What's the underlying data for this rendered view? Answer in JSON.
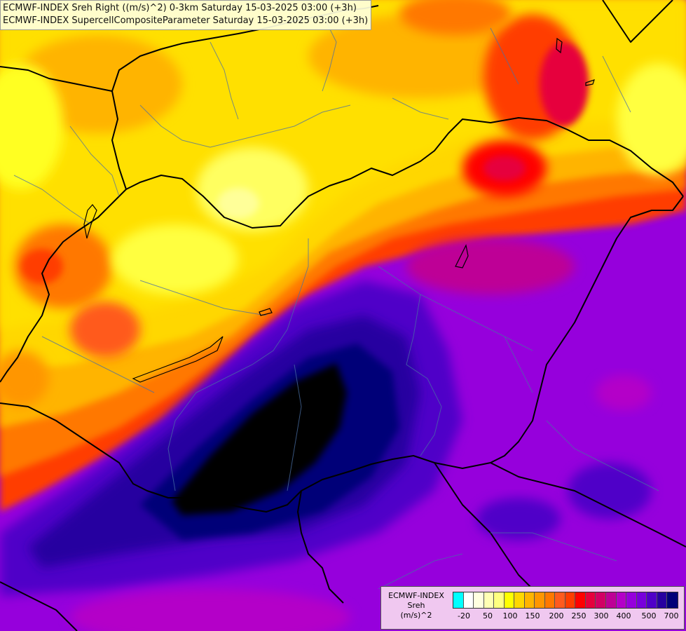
{
  "header": {
    "line1": "ECMWF-INDEX Sreh Right ((m/s)^2) 0-3km Saturday 15-03-2025 03:00 (+3h)",
    "line2": "ECMWF-INDEX SupercellCompositeParameter Saturday 15-03-2025 03:00 (+3h)"
  },
  "legend": {
    "line1": "ECMWF-INDEX",
    "line2": "Sreh",
    "line3": "(m/s)^2",
    "colors": [
      "#00ffff",
      "#ffffff",
      "#ffffe0",
      "#ffffb4",
      "#ffff80",
      "#ffff00",
      "#ffd700",
      "#ffb400",
      "#ff9600",
      "#ff7800",
      "#ff5a1e",
      "#ff3c00",
      "#ff0000",
      "#e6003c",
      "#d20064",
      "#be0096",
      "#b400c8",
      "#9600dc",
      "#7800dc",
      "#5000c8",
      "#2800a0",
      "#000078"
    ],
    "ticks": [
      "-20",
      "50",
      "100",
      "150",
      "200",
      "250",
      "300",
      "400",
      "500",
      "700"
    ]
  },
  "map": {
    "accent_dark": "#000000",
    "accent_navy": "#000078"
  }
}
